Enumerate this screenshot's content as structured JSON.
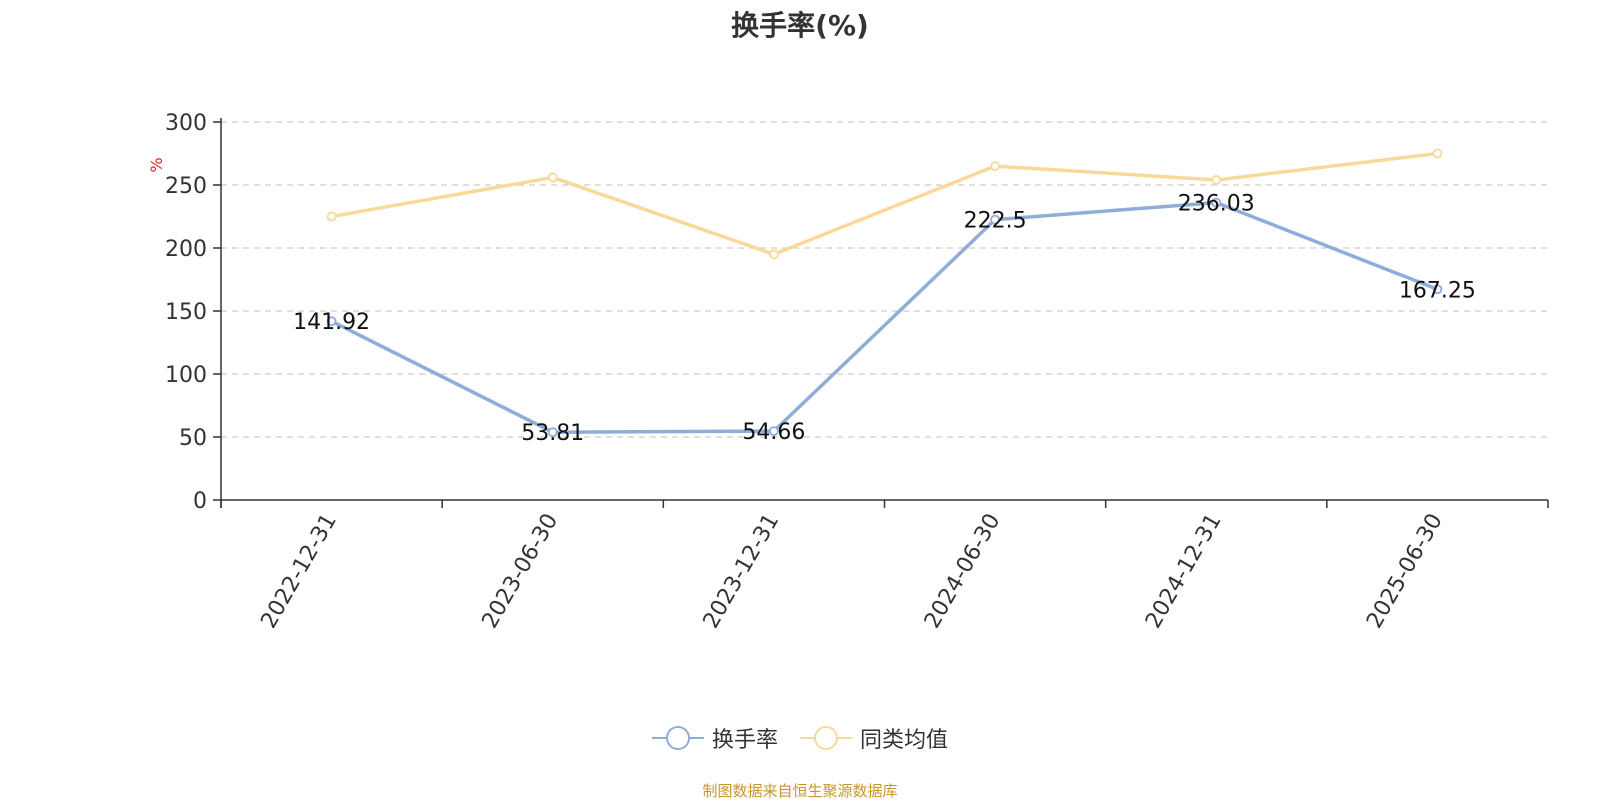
{
  "chart_data": {
    "type": "line",
    "title": "换手率(%)",
    "ylabel": "%",
    "xlabel": "",
    "categories": [
      "2022-12-31",
      "2023-06-30",
      "2023-12-31",
      "2024-06-30",
      "2024-12-31",
      "2025-06-30"
    ],
    "ylim": [
      0,
      300
    ],
    "yticks": [
      0,
      50,
      100,
      150,
      200,
      250,
      300
    ],
    "grid": true,
    "legend_position": "bottom-center",
    "series": [
      {
        "name": "换手率",
        "values": [
          141.92,
          53.81,
          54.66,
          222.5,
          236.03,
          167.25
        ],
        "labels": [
          "141.92",
          "53.81",
          "54.66",
          "222.5",
          "236.03",
          "167.25"
        ],
        "color": "#8fadd9"
      },
      {
        "name": "同类均值",
        "values": [
          225,
          256,
          195,
          265,
          254,
          275
        ],
        "color": "#f9d99a"
      }
    ],
    "ylabel_color": "#e8202a"
  },
  "footer": {
    "text": "制图数据来自恒生聚源数据库",
    "color": "#c8962c"
  }
}
